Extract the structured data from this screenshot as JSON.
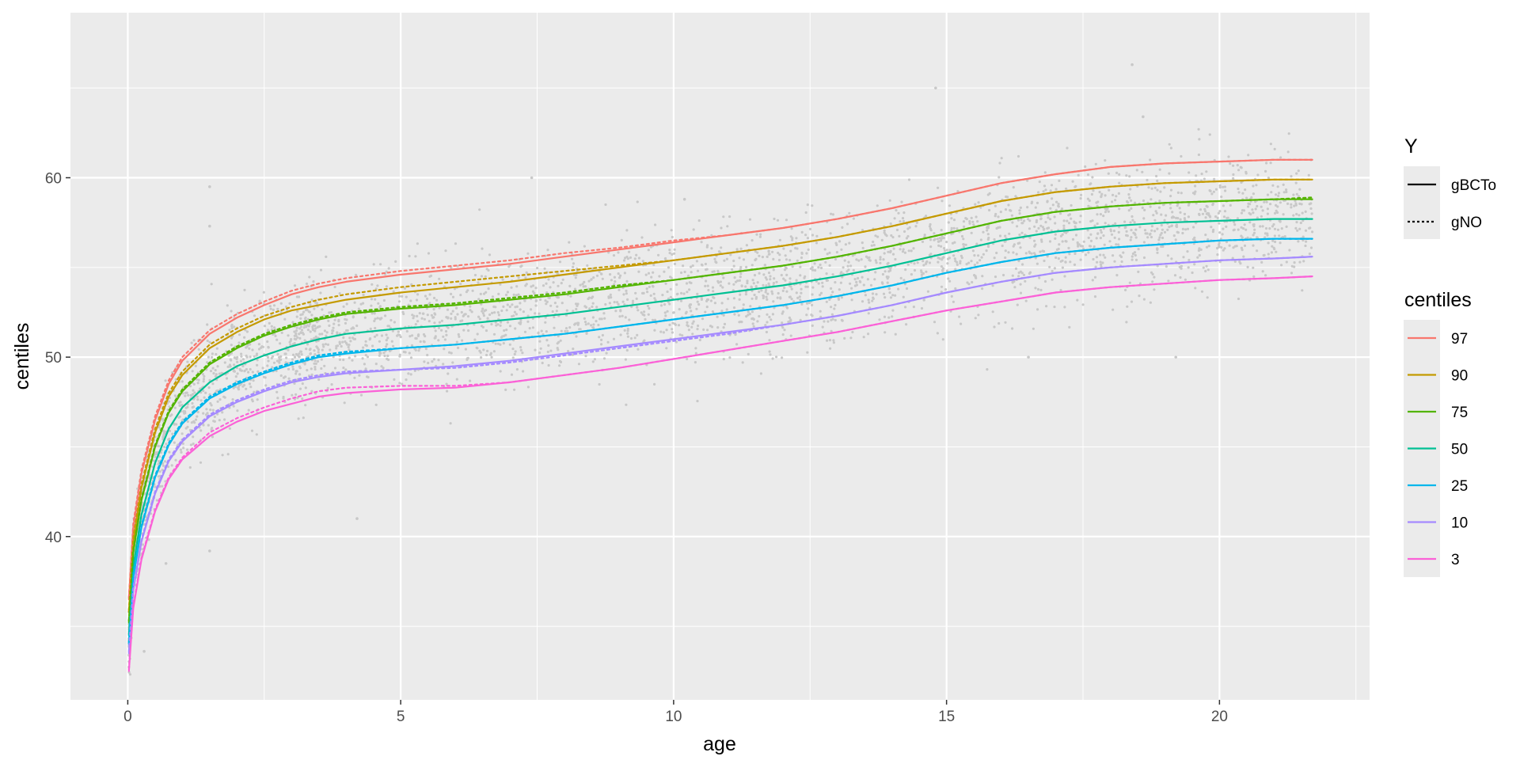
{
  "chart_data": {
    "type": "line",
    "title": "",
    "xlabel": "age",
    "ylabel": "centiles",
    "xlim": [
      -1.05,
      22.75
    ],
    "ylim": [
      30.9,
      69.2
    ],
    "x_ticks": [
      0,
      5,
      10,
      15,
      20
    ],
    "x_tick_labels": [
      "0",
      "5",
      "10",
      "15",
      "20"
    ],
    "y_ticks": [
      40,
      50,
      60
    ],
    "y_tick_labels": [
      "40",
      "50",
      "60"
    ],
    "grid": true,
    "legend_position": "right",
    "legend_Y": {
      "title": "Y",
      "entries": [
        {
          "label": "gBCTo",
          "linestyle": "solid"
        },
        {
          "label": "gNO",
          "linestyle": "dotted"
        }
      ]
    },
    "legend_centiles": {
      "title": "centiles",
      "entries": [
        {
          "label": "97",
          "color": "#F8766D"
        },
        {
          "label": "90",
          "color": "#C49A00"
        },
        {
          "label": "75",
          "color": "#53B400"
        },
        {
          "label": "50",
          "color": "#00C094"
        },
        {
          "label": "25",
          "color": "#00B6EB"
        },
        {
          "label": "10",
          "color": "#A58AFF"
        },
        {
          "label": "3",
          "color": "#FB61D7"
        }
      ]
    },
    "x": [
      0.02,
      0.1,
      0.25,
      0.5,
      0.75,
      1,
      1.5,
      2,
      2.5,
      3,
      3.5,
      4,
      5,
      6,
      7,
      8,
      9,
      10,
      11,
      12,
      13,
      14,
      15,
      16,
      17,
      18,
      19,
      20,
      21,
      21.7
    ],
    "series": [
      {
        "name": "97",
        "linestyle": "solid",
        "values": [
          36.5,
          40.5,
          43.5,
          46.5,
          48.5,
          49.8,
          51.3,
          52.2,
          52.9,
          53.5,
          53.9,
          54.2,
          54.6,
          54.9,
          55.2,
          55.6,
          56.0,
          56.4,
          56.8,
          57.2,
          57.7,
          58.3,
          59.0,
          59.7,
          60.2,
          60.6,
          60.8,
          60.9,
          61.0,
          61.0
        ]
      },
      {
        "name": "97",
        "linestyle": "dotted",
        "values": [
          36.6,
          40.7,
          43.7,
          46.7,
          48.7,
          50.0,
          51.5,
          52.4,
          53.1,
          53.7,
          54.1,
          54.4,
          54.8,
          55.1,
          55.4,
          55.8,
          56.1,
          56.5,
          56.8,
          57.2,
          57.7,
          58.3,
          59.0,
          59.7,
          60.2,
          60.6,
          60.8,
          60.9,
          61.0,
          61.0
        ]
      },
      {
        "name": "90",
        "linestyle": "solid",
        "values": [
          35.8,
          39.7,
          42.7,
          45.8,
          47.8,
          49.0,
          50.5,
          51.4,
          52.1,
          52.6,
          52.9,
          53.2,
          53.6,
          53.9,
          54.2,
          54.6,
          55.0,
          55.4,
          55.8,
          56.2,
          56.7,
          57.3,
          58.0,
          58.7,
          59.2,
          59.5,
          59.7,
          59.8,
          59.9,
          59.9
        ]
      },
      {
        "name": "90",
        "linestyle": "dotted",
        "values": [
          35.9,
          39.9,
          42.9,
          46.0,
          48.0,
          49.2,
          50.7,
          51.6,
          52.3,
          52.8,
          53.2,
          53.5,
          53.9,
          54.2,
          54.5,
          54.8,
          55.1,
          55.4,
          55.8,
          56.2,
          56.7,
          57.3,
          58.0,
          58.7,
          59.2,
          59.5,
          59.7,
          59.8,
          59.9,
          59.9
        ]
      },
      {
        "name": "75",
        "linestyle": "solid",
        "values": [
          35.2,
          39.1,
          42.0,
          45.0,
          46.9,
          48.1,
          49.6,
          50.5,
          51.2,
          51.7,
          52.1,
          52.4,
          52.7,
          52.9,
          53.2,
          53.5,
          53.9,
          54.3,
          54.7,
          55.1,
          55.6,
          56.2,
          56.9,
          57.6,
          58.1,
          58.4,
          58.6,
          58.7,
          58.8,
          58.8
        ]
      },
      {
        "name": "75",
        "linestyle": "dotted",
        "values": [
          35.3,
          39.2,
          42.1,
          45.1,
          47.0,
          48.2,
          49.7,
          50.6,
          51.3,
          51.8,
          52.2,
          52.5,
          52.8,
          53.0,
          53.3,
          53.6,
          54.0,
          54.3,
          54.7,
          55.1,
          55.6,
          56.2,
          56.9,
          57.6,
          58.1,
          58.4,
          58.6,
          58.7,
          58.8,
          58.9
        ]
      },
      {
        "name": "50",
        "linestyle": "solid",
        "values": [
          34.5,
          38.3,
          41.2,
          44.1,
          46.0,
          47.2,
          48.6,
          49.5,
          50.1,
          50.6,
          51.0,
          51.3,
          51.6,
          51.8,
          52.1,
          52.4,
          52.8,
          53.2,
          53.6,
          54.0,
          54.5,
          55.1,
          55.8,
          56.5,
          57.0,
          57.3,
          57.5,
          57.6,
          57.7,
          57.7
        ]
      },
      {
        "name": "25",
        "linestyle": "solid",
        "values": [
          34.0,
          37.7,
          40.5,
          43.3,
          45.1,
          46.3,
          47.7,
          48.5,
          49.1,
          49.6,
          50.0,
          50.2,
          50.5,
          50.7,
          51.0,
          51.3,
          51.7,
          52.1,
          52.5,
          52.9,
          53.4,
          54.0,
          54.7,
          55.3,
          55.8,
          56.1,
          56.3,
          56.5,
          56.6,
          56.6
        ]
      },
      {
        "name": "25",
        "linestyle": "dotted",
        "values": [
          34.1,
          37.8,
          40.6,
          43.4,
          45.2,
          46.4,
          47.8,
          48.6,
          49.2,
          49.7,
          50.1,
          50.3,
          50.5,
          50.7,
          51.0,
          51.3,
          51.7,
          52.1,
          52.5,
          52.9,
          53.4,
          54.0,
          54.7,
          55.3,
          55.8,
          56.1,
          56.3,
          56.5,
          56.6,
          56.6
        ]
      },
      {
        "name": "10",
        "linestyle": "solid",
        "values": [
          33.5,
          37.0,
          39.7,
          42.4,
          44.2,
          45.3,
          46.7,
          47.5,
          48.1,
          48.6,
          48.9,
          49.1,
          49.3,
          49.5,
          49.8,
          50.2,
          50.6,
          51.0,
          51.4,
          51.8,
          52.3,
          52.9,
          53.6,
          54.2,
          54.7,
          55.0,
          55.2,
          55.4,
          55.5,
          55.6
        ]
      },
      {
        "name": "10",
        "linestyle": "dotted",
        "values": [
          33.6,
          37.1,
          39.8,
          42.5,
          44.3,
          45.4,
          46.8,
          47.6,
          48.2,
          48.7,
          49.0,
          49.2,
          49.3,
          49.4,
          49.7,
          50.1,
          50.5,
          50.9,
          51.3,
          51.8,
          52.3,
          52.9,
          53.6,
          54.2,
          54.7,
          55.0,
          55.2,
          55.4,
          55.5,
          55.6
        ]
      },
      {
        "name": "3",
        "linestyle": "solid",
        "values": [
          32.5,
          36.0,
          38.7,
          41.4,
          43.2,
          44.3,
          45.6,
          46.4,
          47.0,
          47.4,
          47.8,
          48.0,
          48.2,
          48.3,
          48.6,
          49.0,
          49.4,
          49.9,
          50.4,
          50.9,
          51.4,
          52.0,
          52.6,
          53.1,
          53.6,
          53.9,
          54.1,
          54.3,
          54.4,
          54.5
        ]
      },
      {
        "name": "3",
        "linestyle": "dotted",
        "values": [
          32.6,
          36.1,
          38.8,
          41.5,
          43.3,
          44.4,
          45.8,
          46.6,
          47.2,
          47.7,
          48.1,
          48.3,
          48.4,
          48.4,
          48.6,
          49.0,
          49.4,
          49.9,
          50.4,
          50.9,
          51.4,
          52.0,
          52.6,
          53.1,
          53.6,
          53.9,
          54.1,
          54.3,
          54.4,
          54.5
        ]
      }
    ],
    "scatter": {
      "color": "#C8C8C8",
      "description_points": [
        [
          0.3,
          43.0
        ],
        [
          1.5,
          59.5
        ],
        [
          1.5,
          57.3
        ],
        [
          7.4,
          60.0
        ],
        [
          10.2,
          58.8
        ],
        [
          14.8,
          65.0
        ],
        [
          18.4,
          66.3
        ],
        [
          18.6,
          63.4
        ],
        [
          16.5,
          50.0
        ],
        [
          19.2,
          50.0
        ],
        [
          0.7,
          38.5
        ],
        [
          4.2,
          41.0
        ],
        [
          1.5,
          39.2
        ],
        [
          0.3,
          33.6
        ]
      ]
    }
  }
}
